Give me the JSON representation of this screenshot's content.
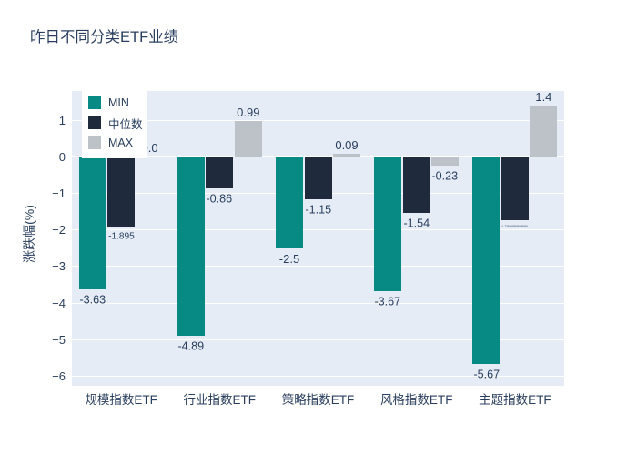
{
  "chart_data": {
    "type": "bar",
    "title": "昨日不同分类ETF业绩",
    "ylabel": "涨跌幅(%)",
    "categories": [
      "规模指数ETF",
      "行业指数ETF",
      "策略指数ETF",
      "风格指数ETF",
      "主题指数ETF"
    ],
    "series": [
      {
        "name": "MIN",
        "color": "#088A84",
        "values": [
          -3.63,
          -4.89,
          -2.5,
          -3.67,
          -5.67
        ],
        "labels": [
          "-3.63",
          "-4.89",
          "-2.5",
          "-3.67",
          "-5.67"
        ]
      },
      {
        "name": "中位数",
        "color": "#1F2B3C",
        "values": [
          -1.895,
          -0.86,
          -1.15,
          -1.54,
          -1.725
        ],
        "labels": [
          "-1.895",
          "-0.86",
          "-1.15",
          "-1.54",
          "-1.7249999999999999"
        ]
      },
      {
        "name": "MAX",
        "color": "#BDC2C9",
        "values": [
          0.0,
          0.99,
          0.09,
          -0.23,
          1.4
        ],
        "labels": [
          "0.0",
          "0.99",
          "0.09",
          "-0.23",
          "1.4"
        ]
      }
    ],
    "yticks": [
      {
        "value": 1,
        "label": "1"
      },
      {
        "value": 0,
        "label": "0"
      },
      {
        "value": -1,
        "label": "−1"
      },
      {
        "value": -2,
        "label": "−2"
      },
      {
        "value": -3,
        "label": "−3"
      },
      {
        "value": -4,
        "label": "−4"
      },
      {
        "value": -5,
        "label": "−5"
      },
      {
        "value": -6,
        "label": "−6"
      }
    ],
    "ylim": [
      -6.26,
      1.8
    ],
    "grid": true,
    "legend_position": "inside-top-left",
    "colors": {
      "plot_bg": "#E5ECF6",
      "paper_bg": "#FFFFFF",
      "grid": "#FFFFFF",
      "text": "#2A3F5F"
    }
  }
}
